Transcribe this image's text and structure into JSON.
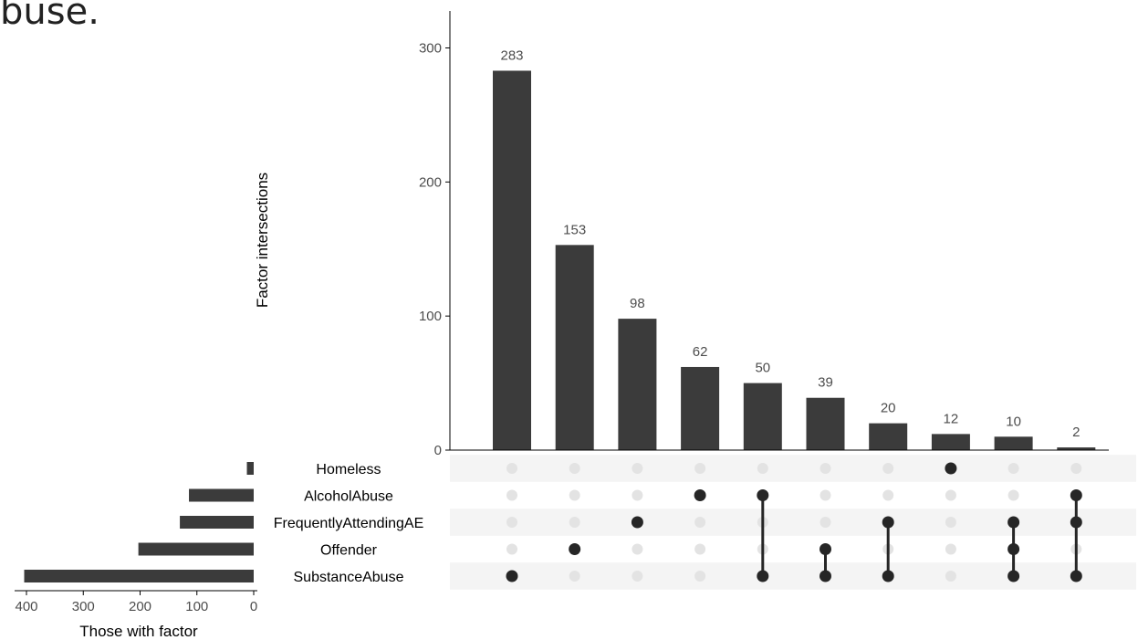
{
  "page_fragment": "buse.",
  "colors": {
    "bar": "#3b3b3b",
    "active_dot": "#262626",
    "inactive_dot": "#e3e3e3",
    "stripe": "#f4f4f4",
    "axis": "#000000",
    "tick_text": "#4d4d4d"
  },
  "chart_data": [
    {
      "type": "bar",
      "title": "",
      "xlabel": "",
      "ylabel": "Factor intersections",
      "ylim": [
        0,
        320
      ],
      "yticks": [
        0,
        100,
        200,
        300
      ],
      "categories": [
        [
          "SubstanceAbuse"
        ],
        [
          "Offender"
        ],
        [
          "FrequentlyAttendingAE"
        ],
        [
          "AlcoholAbuse"
        ],
        [
          "AlcoholAbuse",
          "SubstanceAbuse"
        ],
        [
          "Offender",
          "SubstanceAbuse"
        ],
        [
          "FrequentlyAttendingAE",
          "SubstanceAbuse"
        ],
        [
          "Homeless"
        ],
        [
          "FrequentlyAttendingAE",
          "Offender",
          "SubstanceAbuse"
        ],
        [
          "AlcoholAbuse",
          "FrequentlyAttendingAE",
          "SubstanceAbuse"
        ]
      ],
      "values": [
        283,
        153,
        98,
        62,
        50,
        39,
        20,
        12,
        10,
        2
      ],
      "data_labels": [
        "283",
        "153",
        "98",
        "62",
        "50",
        "39",
        "20",
        "12",
        "10",
        "2"
      ],
      "grid": false
    },
    {
      "type": "bar",
      "orientation": "horizontal",
      "title": "",
      "xlabel": "Those with factor",
      "ylabel": "",
      "xlim": [
        0,
        415
      ],
      "xticks": [
        400,
        300,
        200,
        100,
        0
      ],
      "x_reversed": true,
      "categories": [
        "Homeless",
        "AlcoholAbuse",
        "FrequentlyAttendingAE",
        "Offender",
        "SubstanceAbuse"
      ],
      "values": [
        12,
        114,
        130,
        203,
        404
      ],
      "grid": false
    }
  ]
}
